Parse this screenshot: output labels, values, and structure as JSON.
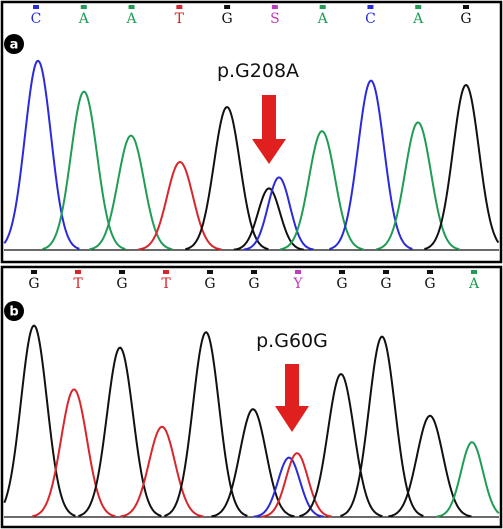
{
  "colors": {
    "A": "#1f9d55",
    "C": "#2b2bd9",
    "G": "#111111",
    "T": "#d8262b",
    "S": "#c23ac2",
    "Y": "#c23ac2",
    "arrow": "#e0201e"
  },
  "panels": [
    {
      "id": "a",
      "badge": "a",
      "mutation": "p.G208A",
      "bases": [
        "C",
        "A",
        "A",
        "T",
        "G",
        "S",
        "A",
        "C",
        "A",
        "G"
      ],
      "peaks": [
        {
          "base": "C",
          "h": 0.86
        },
        {
          "base": "A",
          "h": 0.72
        },
        {
          "base": "A",
          "h": 0.52
        },
        {
          "base": "T",
          "h": 0.4
        },
        {
          "base": "G",
          "h": 0.65
        },
        {
          "base": "G",
          "h": 0.28
        },
        {
          "base": "C",
          "h": 0.33
        },
        {
          "base": "A",
          "h": 0.54
        },
        {
          "base": "C",
          "h": 0.77
        },
        {
          "base": "A",
          "h": 0.58
        },
        {
          "base": "G",
          "h": 0.75
        }
      ]
    },
    {
      "id": "b",
      "badge": "b",
      "mutation": "p.G60G",
      "bases": [
        "G",
        "T",
        "G",
        "T",
        "G",
        "G",
        "Y",
        "G",
        "G",
        "G",
        "A"
      ],
      "peaks": [
        {
          "base": "G",
          "h": 0.87
        },
        {
          "base": "T",
          "h": 0.58
        },
        {
          "base": "G",
          "h": 0.77
        },
        {
          "base": "T",
          "h": 0.41
        },
        {
          "base": "G",
          "h": 0.84
        },
        {
          "base": "G",
          "h": 0.49
        },
        {
          "base": "C",
          "h": 0.27
        },
        {
          "base": "T",
          "h": 0.29
        },
        {
          "base": "G",
          "h": 0.65
        },
        {
          "base": "G",
          "h": 0.82
        },
        {
          "base": "G",
          "h": 0.46
        },
        {
          "base": "A",
          "h": 0.34
        }
      ]
    }
  ]
}
